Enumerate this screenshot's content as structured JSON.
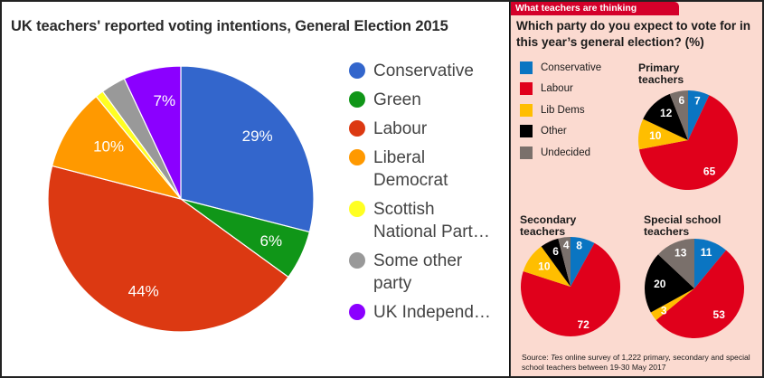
{
  "left_chart": {
    "title": "UK teachers' reported voting intentions, General Election 2015",
    "legend": [
      {
        "label": "Conservative",
        "color": "#3366cc"
      },
      {
        "label": "Green",
        "color": "#109618"
      },
      {
        "label": "Labour",
        "color": "#dc3912"
      },
      {
        "label": "Liberal Democrat",
        "color": "#ff9900"
      },
      {
        "label": "Scottish National Part…",
        "color": "#ffff22"
      },
      {
        "label": "Some other party",
        "color": "#999999"
      },
      {
        "label": "UK Independ…",
        "color": "#8b00ff"
      }
    ]
  },
  "right_chart": {
    "tab_label": "What teachers are thinking",
    "question": "Which party do you expect to vote for in this year’s general election? (%)",
    "legend": [
      {
        "label": "Conservative",
        "color": "#0a75c2"
      },
      {
        "label": "Labour",
        "color": "#e0001b"
      },
      {
        "label": "Lib Dems",
        "color": "#ffbe00"
      },
      {
        "label": "Other",
        "color": "#000000"
      },
      {
        "label": "Undecided",
        "color": "#7a706b"
      }
    ],
    "pies": [
      {
        "title_line1": "Primary",
        "title_line2": "teachers"
      },
      {
        "title_line1": "Secondary",
        "title_line2": "teachers"
      },
      {
        "title_line1": "Special school",
        "title_line2": "teachers"
      }
    ],
    "source_prefix": "Source: ",
    "source_italic": "Tes",
    "source_rest": " online survey of 1,222 primary, secondary and special school teachers between 19-30 May 2017"
  },
  "chart_data": [
    {
      "type": "pie",
      "title": "UK teachers' reported voting intentions, General Election 2015",
      "categories": [
        "Conservative",
        "Green",
        "Labour",
        "Liberal Democrat",
        "Scottish National Party",
        "Some other party",
        "UK Independence Party"
      ],
      "values": [
        29,
        6,
        44,
        10,
        1,
        3,
        7
      ],
      "data_labels": [
        "29%",
        "6%",
        "44%",
        "10%",
        "",
        "",
        "7%"
      ],
      "colors": [
        "#3366cc",
        "#109618",
        "#dc3912",
        "#ff9900",
        "#ffff22",
        "#999999",
        "#8b00ff"
      ],
      "legend_position": "right",
      "start_angle": "12 o'clock, clockwise"
    },
    {
      "type": "pie",
      "title": "Primary teachers",
      "categories": [
        "Conservative",
        "Labour",
        "Lib Dems",
        "Other",
        "Undecided"
      ],
      "values": [
        7,
        65,
        10,
        12,
        6
      ],
      "colors": [
        "#0a75c2",
        "#e0001b",
        "#ffbe00",
        "#000000",
        "#7a706b"
      ]
    },
    {
      "type": "pie",
      "title": "Secondary teachers",
      "categories": [
        "Conservative",
        "Labour",
        "Lib Dems",
        "Other",
        "Undecided"
      ],
      "values": [
        8,
        72,
        10,
        6,
        4
      ],
      "colors": [
        "#0a75c2",
        "#e0001b",
        "#ffbe00",
        "#000000",
        "#7a706b"
      ]
    },
    {
      "type": "pie",
      "title": "Special school teachers",
      "categories": [
        "Conservative",
        "Labour",
        "Lib Dems",
        "Other",
        "Undecided"
      ],
      "values": [
        11,
        53,
        3,
        20,
        13
      ],
      "colors": [
        "#0a75c2",
        "#e0001b",
        "#ffbe00",
        "#000000",
        "#7a706b"
      ]
    }
  ]
}
